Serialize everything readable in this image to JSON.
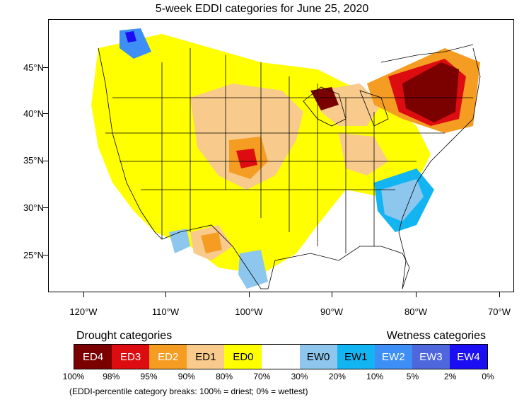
{
  "title": "5-week EDDI categories for June 25, 2020",
  "map": {
    "lat_labels": [
      "45°N",
      "40°N",
      "35°N",
      "30°N",
      "25°N"
    ],
    "lon_labels": [
      "120°W",
      "110°W",
      "100°W",
      "90°W",
      "80°W",
      "70°W"
    ],
    "regions": [
      {
        "name": "northeast-core",
        "category": "ED4"
      },
      {
        "name": "upper-michigan",
        "category": "ED4"
      },
      {
        "name": "kansas-oklahoma",
        "category": "ED3"
      },
      {
        "name": "great-plains",
        "category": "ED1"
      },
      {
        "name": "midwest",
        "category": "ED0"
      },
      {
        "name": "southeast-coast",
        "category": "EW1"
      },
      {
        "name": "pacific-northwest",
        "category": "EW2"
      },
      {
        "name": "south-texas",
        "category": "EW0"
      }
    ]
  },
  "legend": {
    "drought_title": "Drought categories",
    "wetness_title": "Wetness categories",
    "categories": [
      {
        "label": "ED4",
        "color": "#7b0000",
        "text_color": "#ffffff"
      },
      {
        "label": "ED3",
        "color": "#dd0c10",
        "text_color": "#ffffff"
      },
      {
        "label": "ED2",
        "color": "#f59d22",
        "text_color": "#ffffff"
      },
      {
        "label": "ED1",
        "color": "#f8cb8d",
        "text_color": "#000000"
      },
      {
        "label": "ED0",
        "color": "#ffff00",
        "text_color": "#000000"
      },
      {
        "label": "",
        "color": "#ffffff",
        "text_color": "#000000"
      },
      {
        "label": "EW0",
        "color": "#8ec7ee",
        "text_color": "#000000"
      },
      {
        "label": "EW1",
        "color": "#12b5f2",
        "text_color": "#000000"
      },
      {
        "label": "EW2",
        "color": "#3d8ff5",
        "text_color": "#ffffff"
      },
      {
        "label": "EW3",
        "color": "#4f67dd",
        "text_color": "#ffffff"
      },
      {
        "label": "EW4",
        "color": "#1b0ef2",
        "text_color": "#ffffff"
      }
    ],
    "percentiles": [
      "100%",
      "98%",
      "95%",
      "90%",
      "80%",
      "70%",
      "30%",
      "20%",
      "10%",
      "5%",
      "2%",
      "0%"
    ]
  },
  "footnote": "(EDDI-percentile category breaks: 100% = driest; 0% = wettest)"
}
